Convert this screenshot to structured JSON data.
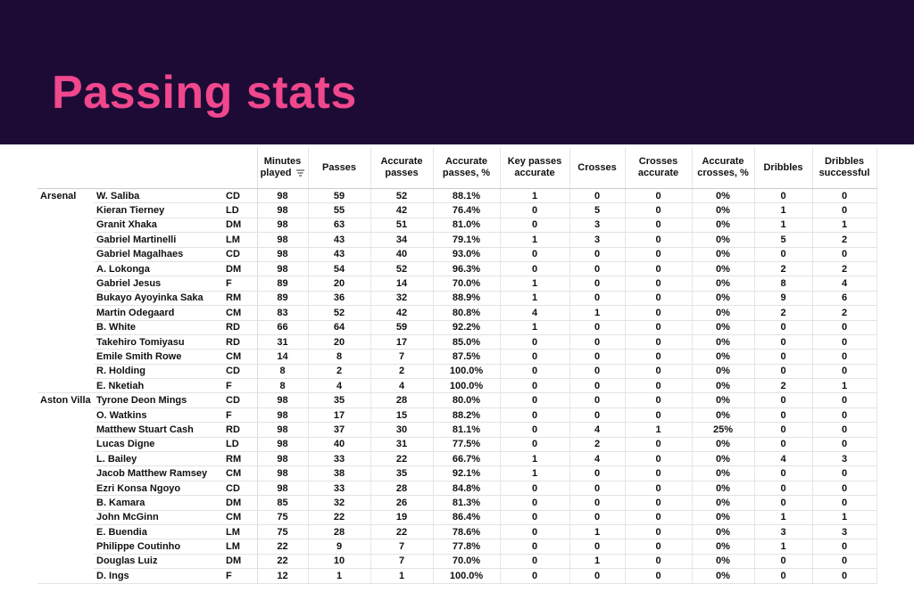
{
  "header": {
    "title": "Passing stats"
  },
  "table": {
    "columns": [
      "Minutes played",
      "Passes",
      "Accurate passes",
      "Accurate passes, %",
      "Key passes accurate",
      "Crosses",
      "Crosses accurate",
      "Accurate crosses, %",
      "Dribbles",
      "Dribbles successful"
    ],
    "groups": [
      {
        "team": "Arsenal",
        "rows": [
          [
            "W. Saliba",
            "CD",
            "98",
            "59",
            "52",
            "88.1%",
            "1",
            "0",
            "0",
            "0%",
            "0",
            "0"
          ],
          [
            "Kieran Tierney",
            "LD",
            "98",
            "55",
            "42",
            "76.4%",
            "0",
            "5",
            "0",
            "0%",
            "1",
            "0"
          ],
          [
            "Granit Xhaka",
            "DM",
            "98",
            "63",
            "51",
            "81.0%",
            "0",
            "3",
            "0",
            "0%",
            "1",
            "1"
          ],
          [
            "Gabriel Martinelli",
            "LM",
            "98",
            "43",
            "34",
            "79.1%",
            "1",
            "3",
            "0",
            "0%",
            "5",
            "2"
          ],
          [
            "Gabriel Magalhaes",
            "CD",
            "98",
            "43",
            "40",
            "93.0%",
            "0",
            "0",
            "0",
            "0%",
            "0",
            "0"
          ],
          [
            "A. Lokonga",
            "DM",
            "98",
            "54",
            "52",
            "96.3%",
            "0",
            "0",
            "0",
            "0%",
            "2",
            "2"
          ],
          [
            "Gabriel Jesus",
            "F",
            "89",
            "20",
            "14",
            "70.0%",
            "1",
            "0",
            "0",
            "0%",
            "8",
            "4"
          ],
          [
            "Bukayo Ayoyinka Saka",
            "RM",
            "89",
            "36",
            "32",
            "88.9%",
            "1",
            "0",
            "0",
            "0%",
            "9",
            "6"
          ],
          [
            "Martin Odegaard",
            "CM",
            "83",
            "52",
            "42",
            "80.8%",
            "4",
            "1",
            "0",
            "0%",
            "2",
            "2"
          ],
          [
            "B. White",
            "RD",
            "66",
            "64",
            "59",
            "92.2%",
            "1",
            "0",
            "0",
            "0%",
            "0",
            "0"
          ],
          [
            "Takehiro Tomiyasu",
            "RD",
            "31",
            "20",
            "17",
            "85.0%",
            "0",
            "0",
            "0",
            "0%",
            "0",
            "0"
          ],
          [
            "Emile Smith Rowe",
            "CM",
            "14",
            "8",
            "7",
            "87.5%",
            "0",
            "0",
            "0",
            "0%",
            "0",
            "0"
          ],
          [
            "R. Holding",
            "CD",
            "8",
            "2",
            "2",
            "100.0%",
            "0",
            "0",
            "0",
            "0%",
            "0",
            "0"
          ],
          [
            "E. Nketiah",
            "F",
            "8",
            "4",
            "4",
            "100.0%",
            "0",
            "0",
            "0",
            "0%",
            "2",
            "1"
          ]
        ]
      },
      {
        "team": "Aston Villa",
        "rows": [
          [
            "Tyrone Deon Mings",
            "CD",
            "98",
            "35",
            "28",
            "80.0%",
            "0",
            "0",
            "0",
            "0%",
            "0",
            "0"
          ],
          [
            "O. Watkins",
            "F",
            "98",
            "17",
            "15",
            "88.2%",
            "0",
            "0",
            "0",
            "0%",
            "0",
            "0"
          ],
          [
            "Matthew Stuart Cash",
            "RD",
            "98",
            "37",
            "30",
            "81.1%",
            "0",
            "4",
            "1",
            "25%",
            "0",
            "0"
          ],
          [
            "Lucas Digne",
            "LD",
            "98",
            "40",
            "31",
            "77.5%",
            "0",
            "2",
            "0",
            "0%",
            "0",
            "0"
          ],
          [
            "L. Bailey",
            "RM",
            "98",
            "33",
            "22",
            "66.7%",
            "1",
            "4",
            "0",
            "0%",
            "4",
            "3"
          ],
          [
            "Jacob Matthew Ramsey",
            "CM",
            "98",
            "38",
            "35",
            "92.1%",
            "1",
            "0",
            "0",
            "0%",
            "0",
            "0"
          ],
          [
            "Ezri Konsa Ngoyo",
            "CD",
            "98",
            "33",
            "28",
            "84.8%",
            "0",
            "0",
            "0",
            "0%",
            "0",
            "0"
          ],
          [
            "B. Kamara",
            "DM",
            "85",
            "32",
            "26",
            "81.3%",
            "0",
            "0",
            "0",
            "0%",
            "0",
            "0"
          ],
          [
            "John McGinn",
            "CM",
            "75",
            "22",
            "19",
            "86.4%",
            "0",
            "0",
            "0",
            "0%",
            "1",
            "1"
          ],
          [
            "E. Buendia",
            "LM",
            "75",
            "28",
            "22",
            "78.6%",
            "0",
            "1",
            "0",
            "0%",
            "3",
            "3"
          ],
          [
            "Philippe Coutinho",
            "LM",
            "22",
            "9",
            "7",
            "77.8%",
            "0",
            "0",
            "0",
            "0%",
            "1",
            "0"
          ],
          [
            "Douglas Luiz",
            "DM",
            "22",
            "10",
            "7",
            "70.0%",
            "0",
            "1",
            "0",
            "0%",
            "0",
            "0"
          ],
          [
            "D. Ings",
            "F",
            "12",
            "1",
            "1",
            "100.0%",
            "0",
            "0",
            "0",
            "0%",
            "0",
            "0"
          ]
        ]
      }
    ]
  }
}
